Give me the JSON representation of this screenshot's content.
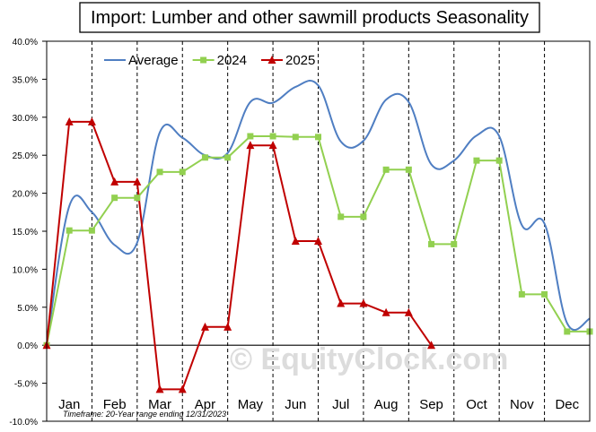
{
  "chart_data": {
    "type": "line",
    "title": "Import: Lumber and other sawmill products Seasonality",
    "xlabel": "",
    "ylabel": "",
    "categories": [
      "Jan",
      "Feb",
      "Mar",
      "Apr",
      "May",
      "Jun",
      "Jul",
      "Aug",
      "Sep",
      "Oct",
      "Nov",
      "Dec"
    ],
    "y_tick_labels": [
      "40.0%",
      "35.0%",
      "30.0%",
      "25.0%",
      "20.0%",
      "15.0%",
      "10.0%",
      "5.0%",
      "0.0%",
      "-5.0%",
      "-10.0%"
    ],
    "ylim": [
      -10,
      40
    ],
    "x_range_months": [
      0,
      12
    ],
    "grid": "vertical dashed lines at month boundaries",
    "legend_position": "top-left",
    "series": [
      {
        "name": "Average",
        "color": "#4f7ec2",
        "marker": "none",
        "style": "smooth",
        "x": [
          0.0,
          0.5,
          1.0,
          1.5,
          2.0,
          2.5,
          3.0,
          3.5,
          4.0,
          4.5,
          5.0,
          5.5,
          6.0,
          6.5,
          7.0,
          7.5,
          8.0,
          8.5,
          9.0,
          9.5,
          10.0,
          10.5,
          11.0,
          11.5,
          12.0
        ],
        "values": [
          0.0,
          18.3,
          17.5,
          13.2,
          13.5,
          28.0,
          27.3,
          25.0,
          25.3,
          32.0,
          31.9,
          34.0,
          34.2,
          26.8,
          26.9,
          32.3,
          32.0,
          23.8,
          24.3,
          27.6,
          27.5,
          15.8,
          16.0,
          2.9,
          3.5
        ]
      },
      {
        "name": "2024",
        "color": "#92d050",
        "marker": "square",
        "style": "straight",
        "x": [
          0.0,
          0.5,
          1.0,
          1.5,
          2.0,
          2.5,
          3.0,
          3.5,
          4.0,
          4.5,
          5.0,
          5.5,
          6.0,
          6.5,
          7.0,
          7.5,
          8.0,
          8.5,
          9.0,
          9.5,
          10.0,
          10.5,
          11.0,
          11.5,
          12.0
        ],
        "values": [
          0.0,
          15.1,
          15.1,
          19.4,
          19.4,
          22.8,
          22.8,
          24.7,
          24.7,
          27.5,
          27.5,
          27.4,
          27.4,
          16.9,
          16.9,
          23.1,
          23.1,
          13.3,
          13.3,
          24.3,
          24.3,
          6.7,
          6.7,
          1.8,
          1.8
        ]
      },
      {
        "name": "2025",
        "color": "#c00000",
        "marker": "triangle",
        "style": "straight",
        "x": [
          0.0,
          0.5,
          1.0,
          1.5,
          2.0,
          2.5,
          3.0,
          3.5,
          4.0,
          4.5,
          5.0,
          5.5,
          6.0,
          6.5,
          7.0,
          7.5,
          8.0,
          8.5
        ],
        "values": [
          0.0,
          29.4,
          29.4,
          21.5,
          21.5,
          -5.8,
          -5.8,
          2.4,
          2.4,
          26.3,
          26.3,
          13.7,
          13.7,
          5.5,
          5.5,
          4.3,
          4.3,
          0.0
        ]
      }
    ],
    "annotations": [
      "Timeframe: 20-Year range ending 12/31/2023"
    ],
    "watermark": "© EquityClock.com"
  }
}
